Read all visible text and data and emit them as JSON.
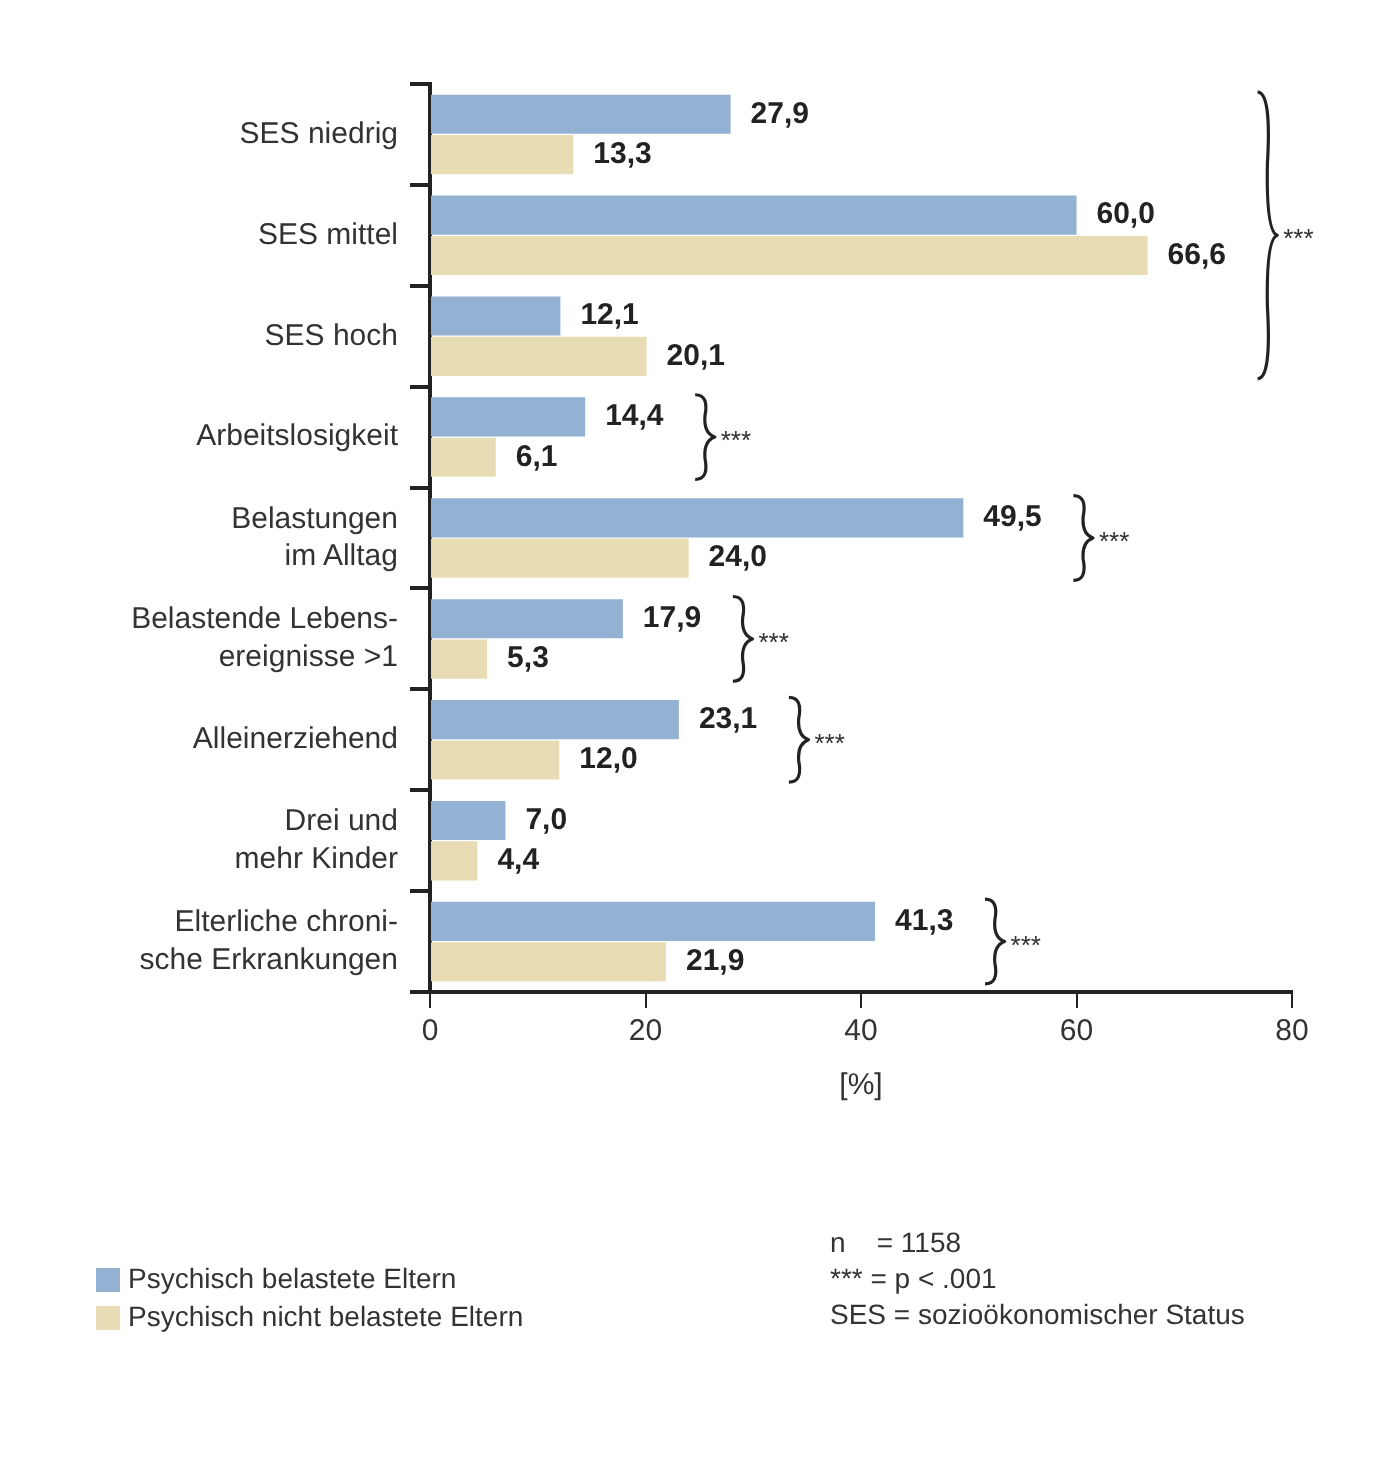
{
  "chart_data": {
    "type": "bar",
    "orientation": "horizontal",
    "xlabel": "[%]",
    "categories": [
      "SES niedrig",
      "SES mittel",
      "SES hoch",
      "Arbeitslosigkeit",
      "Belastungen\nim Alltag",
      "Belastende Lebens-\nereignisse >1",
      "Alleinerziehend",
      "Drei und\nmehr Kinder",
      "Elterliche chroni-\nsche Erkrankungen"
    ],
    "series": [
      {
        "name": "Psychisch belastete Eltern",
        "color": "#93b1d3",
        "values": [
          27.9,
          60.0,
          12.1,
          14.4,
          49.5,
          17.9,
          23.1,
          7.0,
          41.3
        ],
        "value_labels": [
          "27,9",
          "60,0",
          "12,1",
          "14,4",
          "49,5",
          "17,9",
          "23,1",
          "7,0",
          "41,3"
        ]
      },
      {
        "name": "Psychisch nicht belastete Eltern",
        "color": "#e8dcb5",
        "values": [
          13.3,
          66.6,
          20.1,
          6.1,
          24.0,
          5.3,
          12.0,
          4.4,
          21.9
        ],
        "value_labels": [
          "13,3",
          "66,6",
          "20,1",
          "6,1",
          "24,0",
          "5,3",
          "12,0",
          "4,4",
          "21,9"
        ]
      }
    ],
    "xlim": [
      0,
      80
    ],
    "xticks": [
      0,
      20,
      40,
      60,
      80
    ],
    "grid": false,
    "legend": "bottom left",
    "annotations": [
      "***",
      "***",
      "***",
      "***",
      "***",
      "***",
      "n    = 1158",
      "*** = p < .001",
      "SES = sozioökonomischer Status"
    ]
  }
}
